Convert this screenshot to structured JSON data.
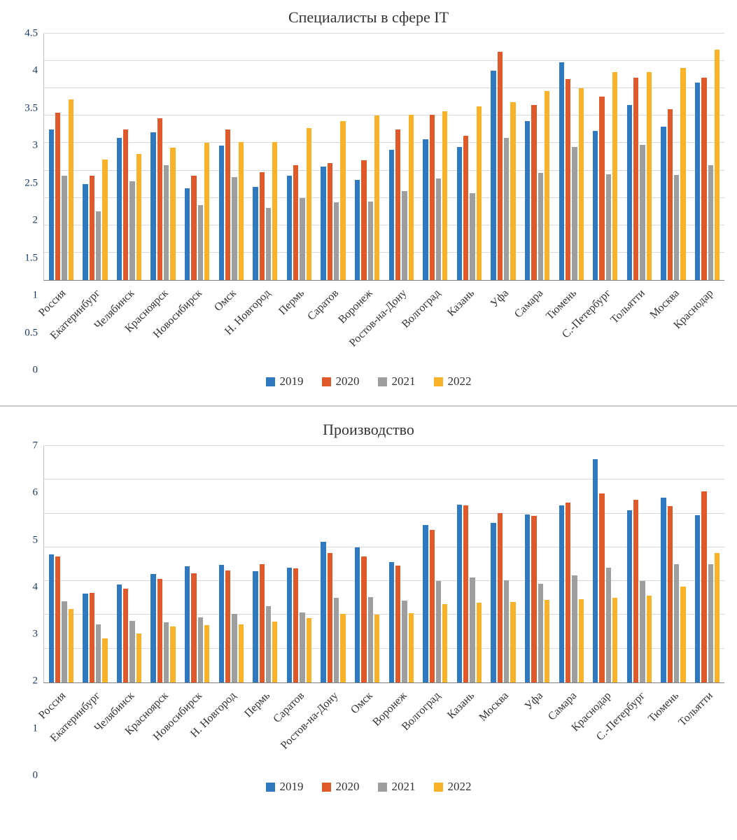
{
  "colors": {
    "s2019": "#2e79bf",
    "s2020": "#e0592b",
    "s2021": "#9e9e9e",
    "s2022": "#f9b32a"
  },
  "chart_data": [
    {
      "type": "bar",
      "title": "Специалисты в сфере IT",
      "xlabel": "",
      "ylabel": "",
      "ylim": [
        0,
        4.5
      ],
      "ytick_step": 0.5,
      "grid": true,
      "legend_position": "bottom",
      "categories": [
        "Россия",
        "Екатеринбург",
        "Челябинск",
        "Красноярск",
        "Новосибирск",
        "Омск",
        "Н. Новгород",
        "Пермь",
        "Саратов",
        "Воронеж",
        "Ростов-на-Дону",
        "Волгоград",
        "Казань",
        "Уфа",
        "Самара",
        "Тюмень",
        "С.-Петербург",
        "Тольятти",
        "Москва",
        "Краснодар"
      ],
      "series": [
        {
          "name": "2019",
          "color": "#2e79bf",
          "values": [
            2.75,
            1.75,
            2.6,
            2.7,
            1.68,
            2.45,
            1.7,
            1.9,
            2.07,
            1.83,
            2.38,
            2.57,
            2.43,
            3.82,
            2.9,
            3.97,
            2.72,
            3.2,
            2.8,
            3.6
          ]
        },
        {
          "name": "2020",
          "color": "#e0592b",
          "values": [
            3.05,
            1.9,
            2.75,
            2.95,
            1.9,
            2.75,
            1.97,
            2.1,
            2.13,
            2.18,
            2.75,
            3.02,
            2.63,
            4.17,
            3.2,
            3.67,
            3.35,
            3.7,
            3.12,
            3.7
          ]
        },
        {
          "name": "2021",
          "color": "#9e9e9e",
          "values": [
            1.9,
            1.25,
            1.8,
            2.1,
            1.37,
            1.88,
            1.32,
            1.5,
            1.42,
            1.43,
            1.62,
            1.85,
            1.58,
            2.6,
            1.95,
            2.43,
            1.93,
            2.47,
            1.92,
            2.1
          ]
        },
        {
          "name": "2022",
          "color": "#f9b32a",
          "values": [
            3.3,
            2.2,
            2.3,
            2.42,
            2.5,
            2.52,
            2.52,
            2.77,
            2.9,
            3.0,
            3.02,
            3.08,
            3.17,
            3.25,
            3.45,
            3.5,
            3.8,
            3.8,
            3.88,
            4.2
          ]
        }
      ]
    },
    {
      "type": "bar",
      "title": "Производство",
      "xlabel": "",
      "ylabel": "",
      "ylim": [
        0,
        7
      ],
      "ytick_step": 1,
      "grid": true,
      "legend_position": "bottom",
      "categories": [
        "Россия",
        "Екатеринбург",
        "Челябинск",
        "Красноярск",
        "Новосибирск",
        "Н. Новгород",
        "Пермь",
        "Саратов",
        "Ростов-на-Дону",
        "Омск",
        "Воронеж",
        "Волгоград",
        "Казань",
        "Москва",
        "Уфа",
        "Самара",
        "Краснодар",
        "С.-Петербург",
        "Тюмень",
        "Тольятти"
      ],
      "series": [
        {
          "name": "2019",
          "color": "#2e79bf",
          "values": [
            3.8,
            2.63,
            2.9,
            3.22,
            3.43,
            3.47,
            3.3,
            3.4,
            4.17,
            4.0,
            3.57,
            4.65,
            5.27,
            4.72,
            4.97,
            5.25,
            6.6,
            5.1,
            5.47,
            4.95
          ]
        },
        {
          "name": "2020",
          "color": "#e0592b",
          "values": [
            3.72,
            2.65,
            2.78,
            3.07,
            3.23,
            3.32,
            3.5,
            3.37,
            3.83,
            3.72,
            3.45,
            4.52,
            5.23,
            5.02,
            4.93,
            5.32,
            5.6,
            5.4,
            5.22,
            5.65
          ]
        },
        {
          "name": "2021",
          "color": "#9e9e9e",
          "values": [
            2.4,
            1.72,
            1.82,
            1.78,
            1.92,
            2.02,
            2.25,
            2.08,
            2.5,
            2.52,
            2.42,
            3.0,
            3.1,
            3.02,
            2.93,
            3.17,
            3.4,
            3.0,
            3.5,
            3.5
          ]
        },
        {
          "name": "2022",
          "color": "#f9b32a",
          "values": [
            2.18,
            1.3,
            1.45,
            1.65,
            1.7,
            1.72,
            1.8,
            1.9,
            2.02,
            2.0,
            2.05,
            2.32,
            2.37,
            2.38,
            2.45,
            2.47,
            2.5,
            2.57,
            2.83,
            3.83
          ]
        }
      ]
    }
  ]
}
